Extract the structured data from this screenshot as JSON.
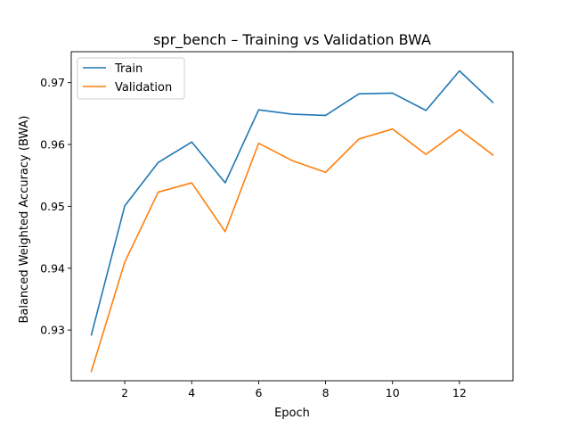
{
  "chart_data": {
    "type": "line",
    "title": "spr_bench – Training vs Validation BWA",
    "xlabel": "Epoch",
    "ylabel": "Balanced Weighted Accuracy (BWA)",
    "x": [
      1,
      2,
      3,
      4,
      5,
      6,
      7,
      8,
      9,
      10,
      11,
      12,
      13
    ],
    "xlim": [
      0.4,
      13.6
    ],
    "ylim": [
      0.9218,
      0.975
    ],
    "xticks": [
      "2",
      "4",
      "6",
      "8",
      "10",
      "12"
    ],
    "yticks": [
      "0.93",
      "0.94",
      "0.95",
      "0.96",
      "0.97"
    ],
    "series": [
      {
        "name": "Train",
        "color": "#1f77b4",
        "values": [
          0.9292,
          0.9501,
          0.9571,
          0.9604,
          0.9538,
          0.9656,
          0.9649,
          0.9647,
          0.9682,
          0.9683,
          0.9655,
          0.9719,
          0.9668
        ]
      },
      {
        "name": "Validation",
        "color": "#ff7f0e",
        "values": [
          0.9233,
          0.941,
          0.9523,
          0.9538,
          0.9459,
          0.9602,
          0.9574,
          0.9555,
          0.9609,
          0.9625,
          0.9584,
          0.9624,
          0.9583
        ]
      }
    ],
    "grid": false,
    "legend_position": "top-left"
  }
}
